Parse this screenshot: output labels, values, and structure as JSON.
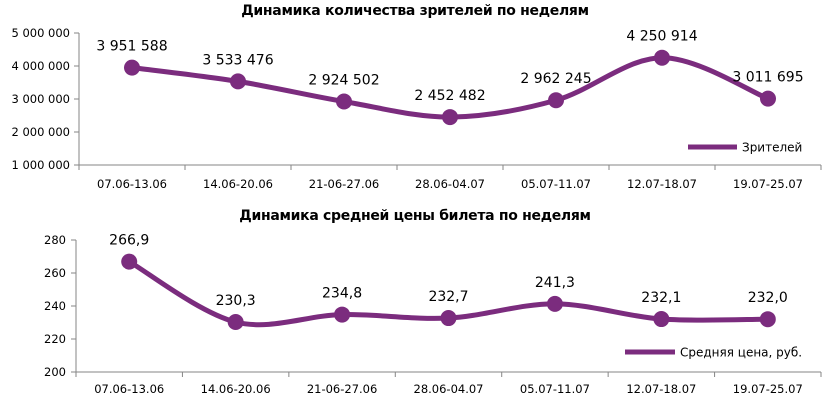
{
  "colors": {
    "series": "#7B2C7E",
    "axis": "#868686",
    "text": "#000000"
  },
  "chart_data": [
    {
      "type": "line",
      "title": "Динамика количества зрителей по неделям",
      "categories": [
        "07.06-13.06",
        "14.06-20.06",
        "21-06-27.06",
        "28.06-04.07",
        "05.07-11.07",
        "12.07-18.07",
        "19.07-25.07"
      ],
      "series": [
        {
          "name": "Зрителей",
          "values": [
            3951588,
            3533476,
            2924502,
            2452482,
            2962245,
            4250914,
            3011695
          ]
        }
      ],
      "data_labels": [
        "3 951 588",
        "3 533 476",
        "2 924 502",
        "2 452 482",
        "2 962 245",
        "4 250 914",
        "3 011 695"
      ],
      "xlabel": "",
      "ylabel": "",
      "ylim": [
        1000000,
        5000000
      ],
      "yticks": [
        1000000,
        2000000,
        3000000,
        4000000,
        5000000
      ],
      "ytick_labels": [
        "1 000 000",
        "2 000 000",
        "3 000 000",
        "4 000 000",
        "5 000 000"
      ],
      "grid": false,
      "smooth": true,
      "legend_position": "bottom-right inside"
    },
    {
      "type": "line",
      "title": "Динамика средней цены билета по неделям",
      "categories": [
        "07.06-13.06",
        "14.06-20.06",
        "21-06-27.06",
        "28.06-04.07",
        "05.07-11.07",
        "12.07-18.07",
        "19.07-25.07"
      ],
      "series": [
        {
          "name": "Средняя цена, руб.",
          "values": [
            266.9,
            230.3,
            234.8,
            232.7,
            241.3,
            232.1,
            232.0
          ]
        }
      ],
      "data_labels": [
        "266,9",
        "230,3",
        "234,8",
        "232,7",
        "241,3",
        "232,1",
        "232,0"
      ],
      "xlabel": "",
      "ylabel": "",
      "ylim": [
        200,
        280
      ],
      "yticks": [
        200,
        220,
        240,
        260,
        280
      ],
      "ytick_labels": [
        "200",
        "220",
        "240",
        "260",
        "280"
      ],
      "grid": false,
      "smooth": true,
      "legend_position": "bottom-right inside"
    }
  ]
}
